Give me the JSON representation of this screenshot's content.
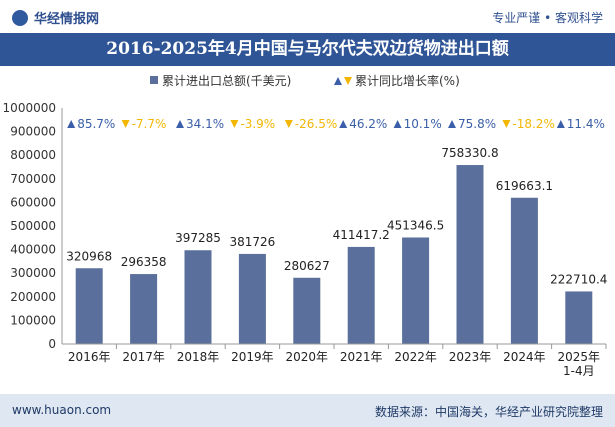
{
  "header": {
    "brand": "华经情报网",
    "tagline": "专业严谨 • 客观科学"
  },
  "footer": {
    "website": "www.huaon.com",
    "source": "数据来源：中国海关，华经产业研究院整理"
  },
  "colors": {
    "bar": "#5a6f9b",
    "up_marker": "#3a5fa8",
    "down_marker": "#f2b705",
    "title_bg": "#2f5597"
  },
  "chart_data": {
    "type": "bar",
    "title": "2016-2025年4月中国与马尔代夫双边货物进出口额",
    "categories": [
      "2016年",
      "2017年",
      "2018年",
      "2019年",
      "2020年",
      "2021年",
      "2022年",
      "2023年",
      "2024年",
      "2025年 1-4月"
    ],
    "series": [
      {
        "name": "累计进出口总额(千美元)",
        "values": [
          320968,
          296358,
          397285,
          381726,
          280627,
          411417.2,
          451346.5,
          758330.8,
          619663.1,
          222710.4
        ],
        "labels": [
          "320968",
          "296358",
          "397285",
          "381726",
          "280627",
          "411417.2",
          "451346.5",
          "758330.8",
          "619663.1",
          "222710.4"
        ]
      },
      {
        "name": "累计同比增长率(%)",
        "values": [
          85.7,
          -7.7,
          34.1,
          -3.9,
          -26.5,
          46.2,
          10.1,
          75.8,
          -18.2,
          11.4
        ],
        "labels": [
          "85.7%",
          "-7.7%",
          "34.1%",
          "-3.9%",
          "-26.5%",
          "46.2%",
          "10.1%",
          "75.8%",
          "-18.2%",
          "11.4%"
        ]
      }
    ],
    "ylim": [
      0,
      1000000
    ],
    "yticks": [
      "0",
      "100000",
      "200000",
      "300000",
      "400000",
      "500000",
      "600000",
      "700000",
      "800000",
      "900000",
      "1000000"
    ],
    "legend_position": "top",
    "grid": false
  }
}
